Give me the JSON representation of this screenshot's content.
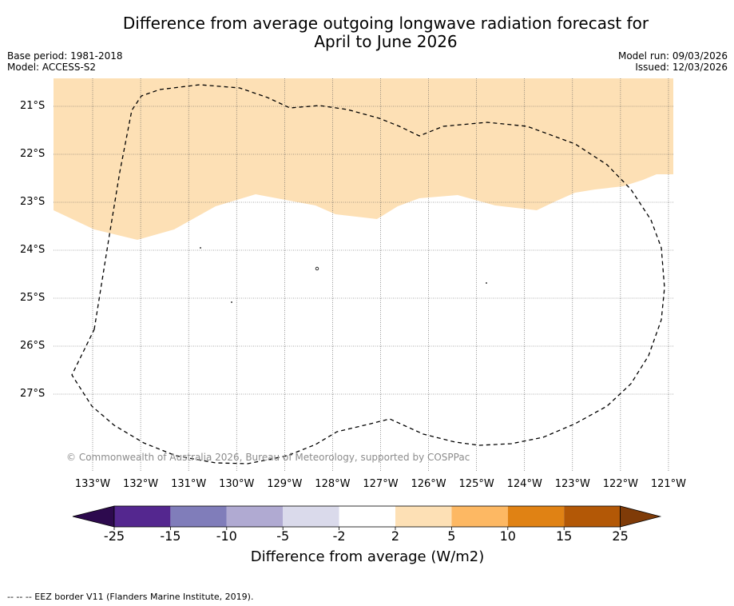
{
  "header": {
    "title_line1": "Difference from average outgoing longwave radiation forecast for",
    "title_line2": "April to June 2026",
    "base_period": "Base period: 1981-2018",
    "model": "Model: ACCESS-S2",
    "model_run": "Model run: 09/03/2026",
    "issued": "Issued: 12/03/2026"
  },
  "map": {
    "copyright": "© Commonwealth of Australia 2026, Bureau of Meteorology, supported by COSPPac",
    "lat_labels": [
      "21°S",
      "22°S",
      "23°S",
      "24°S",
      "25°S",
      "26°S",
      "27°S"
    ],
    "lon_labels": [
      "133°W",
      "132°W",
      "131°W",
      "130°W",
      "129°W",
      "128°W",
      "127°W",
      "126°W",
      "125°W",
      "124°W",
      "123°W",
      "122°W",
      "121°W"
    ],
    "anomaly_category": "2 to 5",
    "anomaly_color": "#fde0b5"
  },
  "colorbar": {
    "ticks": [
      "-25",
      "-15",
      "-10",
      "-5",
      "-2",
      "2",
      "5",
      "10",
      "15",
      "25"
    ],
    "colors": [
      "#2d0a4e",
      "#54278f",
      "#807dba",
      "#b0aad2",
      "#dadaeb",
      "#ffffff",
      "#fde0b5",
      "#fdb863",
      "#e08214",
      "#b35806",
      "#7f3b08"
    ],
    "label": "Difference from average (W/m2)"
  },
  "legend": {
    "eez_note": "--  --  -- EEZ border V11 (Flanders Marine Institute, 2019)."
  }
}
